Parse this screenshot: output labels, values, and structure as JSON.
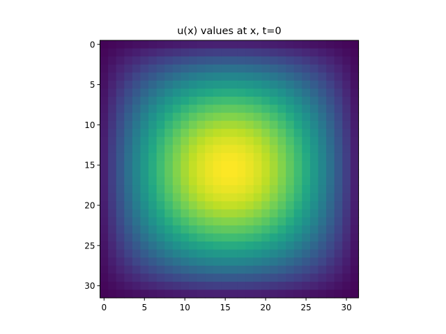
{
  "chart_data": {
    "type": "heatmap",
    "title": "u(x) values at x, t=0",
    "xlabel": "",
    "ylabel": "",
    "rows": 32,
    "cols": 32,
    "value_function": "sin(pi*(i+1)/33) * sin(pi*(j+1)/33)",
    "value_range": [
      0,
      1
    ],
    "colormap": "viridis",
    "x_ticks": [
      0,
      5,
      10,
      15,
      20,
      25,
      30
    ],
    "x_tick_labels": [
      "0",
      "5",
      "10",
      "15",
      "20",
      "25",
      "30"
    ],
    "y_ticks": [
      0,
      5,
      10,
      15,
      20,
      25,
      30
    ],
    "y_tick_labels": [
      "0",
      "5",
      "10",
      "15",
      "20",
      "25",
      "30"
    ],
    "xlim": [
      -0.5,
      31.5
    ],
    "ylim": [
      31.5,
      -0.5
    ],
    "grid": false,
    "legend": "none"
  }
}
